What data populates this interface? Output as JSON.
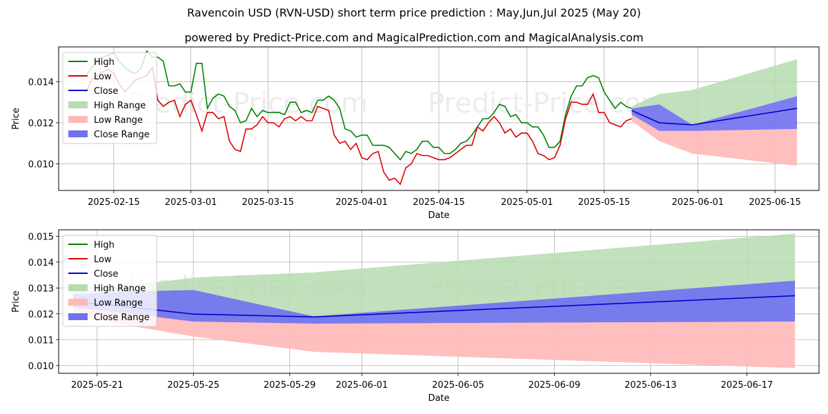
{
  "title": "Ravencoin USD (RVN-USD) short term price prediction : May,Jun,Jul 2025 (May 20)",
  "subtitle": "powered by Predict-Price.com and MagicalPrediction.com and MagicalAnalysis.com",
  "watermark": "Predict-Price.com",
  "colors": {
    "high": "#008000",
    "low": "#dd0000",
    "close": "#0000cc",
    "high_range": "#b6dcb0",
    "low_range": "#ffb8b8",
    "close_range": "#7070f0"
  },
  "chart_data": [
    {
      "type": "line",
      "xlabel": "Date",
      "ylabel": "Price",
      "x_ticks": [
        "2025-02-15",
        "2025-03-01",
        "2025-03-15",
        "2025-04-01",
        "2025-04-15",
        "2025-05-01",
        "2025-05-15",
        "2025-06-01",
        "2025-06-15"
      ],
      "y_ticks": [
        "0.010",
        "0.012",
        "0.014"
      ],
      "xlim": [
        "2025-02-05",
        "2025-06-23"
      ],
      "ylim": [
        0.0087,
        0.0157
      ],
      "grid": true,
      "legend_position": "top-left",
      "legend": [
        "High",
        "Low",
        "Close",
        "High Range",
        "Low Range",
        "Close Range"
      ],
      "history_start": "2025-02-10",
      "series": [
        {
          "name": "High",
          "values": [
            0.0143,
            0.0147,
            0.015,
            0.0152,
            0.0153,
            0.0154,
            0.015,
            0.0147,
            0.0145,
            0.0144,
            0.0147,
            0.0155,
            0.0152,
            0.0152,
            0.015,
            0.0138,
            0.0138,
            0.0139,
            0.0135,
            0.0135,
            0.0149,
            0.0149,
            0.0127,
            0.0132,
            0.0134,
            0.0133,
            0.0128,
            0.0126,
            0.012,
            0.0121,
            0.0127,
            0.0123,
            0.0126,
            0.0125,
            0.0125,
            0.0125,
            0.0124,
            0.013,
            0.013,
            0.0125,
            0.0126,
            0.0125,
            0.0131,
            0.0131,
            0.0133,
            0.0131,
            0.0127,
            0.0117,
            0.0116,
            0.0113,
            0.0114,
            0.0114,
            0.0109,
            0.0109,
            0.0109,
            0.0108,
            0.0105,
            0.0102,
            0.0106,
            0.0105,
            0.0107,
            0.0111,
            0.0111,
            0.0108,
            0.0108,
            0.0105,
            0.0105,
            0.0107,
            0.011,
            0.0111,
            0.0114,
            0.0118,
            0.0122,
            0.0122,
            0.0125,
            0.0129,
            0.0128,
            0.0123,
            0.0124,
            0.012,
            0.012,
            0.0118,
            0.0118,
            0.0114,
            0.0108,
            0.0108,
            0.0111,
            0.0124,
            0.0133,
            0.0138,
            0.0138,
            0.0142,
            0.0143,
            0.0142,
            0.0135,
            0.0131,
            0.0127,
            0.013,
            0.0128,
            0.0127
          ]
        },
        {
          "name": "Low",
          "values": [
            0.0135,
            0.0141,
            0.0143,
            0.0145,
            0.0146,
            0.0144,
            0.0139,
            0.0135,
            0.0138,
            0.0141,
            0.0142,
            0.0143,
            0.0147,
            0.0131,
            0.0128,
            0.013,
            0.0131,
            0.0123,
            0.0129,
            0.0131,
            0.0124,
            0.0116,
            0.0125,
            0.0125,
            0.0122,
            0.0123,
            0.0111,
            0.0107,
            0.0106,
            0.0117,
            0.0117,
            0.0119,
            0.0123,
            0.012,
            0.012,
            0.0118,
            0.0122,
            0.0123,
            0.0121,
            0.0123,
            0.0121,
            0.0121,
            0.0128,
            0.0127,
            0.0126,
            0.0114,
            0.011,
            0.0111,
            0.0107,
            0.011,
            0.0103,
            0.0102,
            0.0105,
            0.0106,
            0.0096,
            0.0092,
            0.0093,
            0.009,
            0.0098,
            0.01,
            0.0105,
            0.0104,
            0.0104,
            0.0103,
            0.0102,
            0.0102,
            0.0103,
            0.0105,
            0.0107,
            0.0109,
            0.0109,
            0.0118,
            0.0116,
            0.012,
            0.0123,
            0.012,
            0.0115,
            0.0117,
            0.0113,
            0.0115,
            0.0115,
            0.0111,
            0.0105,
            0.0104,
            0.0102,
            0.0103,
            0.0109,
            0.0122,
            0.013,
            0.013,
            0.0129,
            0.0129,
            0.0134,
            0.0125,
            0.0125,
            0.012,
            0.0119,
            0.0118,
            0.0121,
            0.0122
          ]
        }
      ],
      "forecast": {
        "x": [
          "2025-05-20",
          "2025-05-25",
          "2025-05-31",
          "2025-06-19"
        ],
        "close": [
          0.0126,
          0.012,
          0.0119,
          0.0127
        ],
        "high_range_upper": [
          0.0128,
          0.0134,
          0.0136,
          0.0151
        ],
        "low_range_lower": [
          0.0121,
          0.0111,
          0.0105,
          0.0099
        ],
        "close_range_upper": [
          0.0127,
          0.0129,
          0.0119,
          0.0133
        ],
        "close_range_lower": [
          0.0124,
          0.0116,
          0.0116,
          0.0117
        ]
      }
    },
    {
      "type": "area",
      "xlabel": "Date",
      "ylabel": "Price",
      "x_ticks": [
        "2025-05-21",
        "2025-05-25",
        "2025-05-29",
        "2025-06-01",
        "2025-06-05",
        "2025-06-09",
        "2025-06-13",
        "2025-06-17"
      ],
      "y_ticks": [
        "0.010",
        "0.011",
        "0.012",
        "0.013",
        "0.014",
        "0.015"
      ],
      "xlim": [
        "2025-05-19.4",
        "2025-06-20"
      ],
      "ylim": [
        0.0097,
        0.01525
      ],
      "grid": true,
      "legend_position": "top-left",
      "legend": [
        "High",
        "Low",
        "Close",
        "High Range",
        "Low Range",
        "Close Range"
      ],
      "forecast": {
        "x": [
          "2025-05-20",
          "2025-05-22",
          "2025-05-25",
          "2025-05-30",
          "2025-06-19"
        ],
        "close": [
          0.01247,
          0.0123,
          0.01199,
          0.01188,
          0.0127
        ],
        "high_range_upper": [
          0.01285,
          0.01305,
          0.0134,
          0.0136,
          0.0151
        ],
        "high_range_lower": [
          0.0122,
          0.012,
          0.0117,
          0.01162,
          0.0117
        ],
        "low_range_upper": [
          0.01265,
          0.0121,
          0.01175,
          0.01162,
          0.0117
        ],
        "low_range_lower": [
          0.01205,
          0.0116,
          0.01112,
          0.01053,
          0.0099
        ],
        "close_range_upper": [
          0.01275,
          0.01285,
          0.01292,
          0.0119,
          0.01328
        ],
        "close_range_lower": [
          0.01225,
          0.01205,
          0.0117,
          0.01162,
          0.0117
        ]
      }
    }
  ]
}
